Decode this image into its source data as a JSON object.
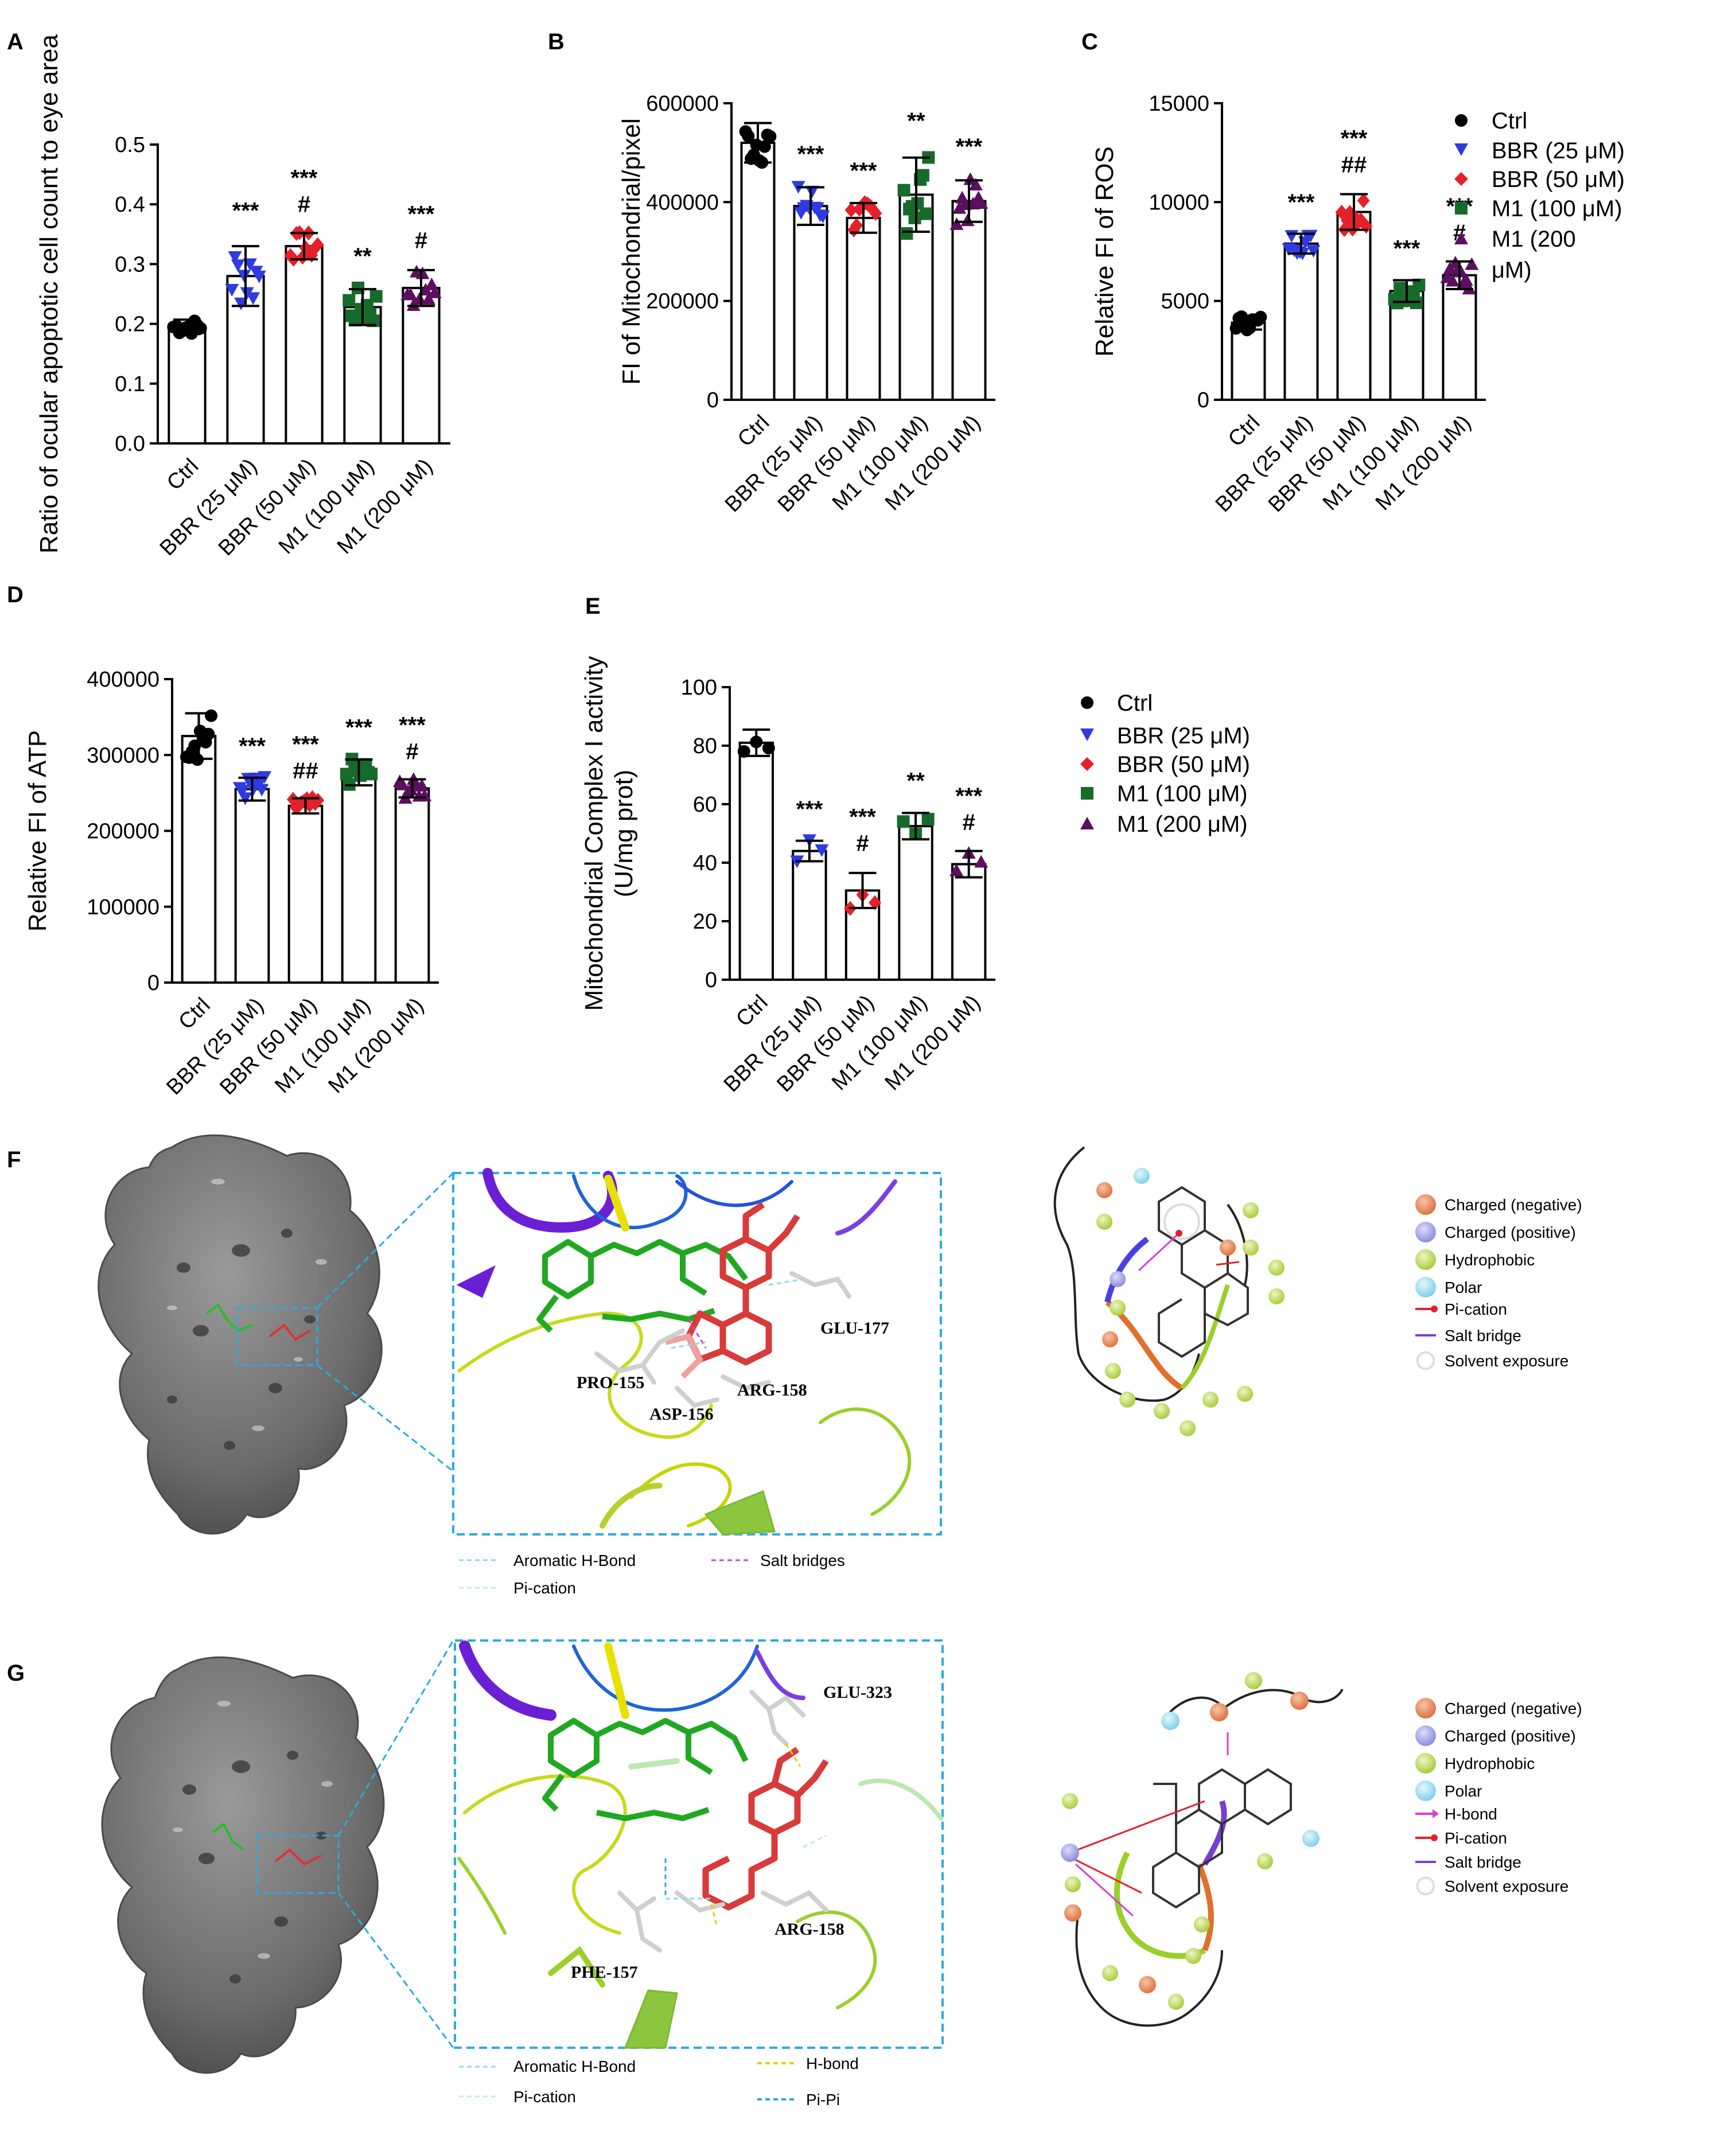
{
  "colors": {
    "Ctrl": "#000000",
    "BBR (25 μM)": "#2E3BE0",
    "BBR (50 μM)": "#E5202A",
    "M1 (100 μM)": "#166B2A",
    "M1 (200 μM)": "#5C0F5E",
    "frame": "#29ABE2"
  },
  "panel_labels": [
    "A",
    "B",
    "C",
    "D",
    "E",
    "F",
    "G"
  ],
  "legend_top": {
    "items": [
      "Ctrl",
      "BBR (25 μM)",
      "BBR (50 μM)",
      "M1 (100 μM)",
      "M1 (200 μM)"
    ],
    "last_line1": "M1 (200",
    "last_line2": "μM)"
  },
  "legend_mid": {
    "items": [
      "Ctrl",
      "BBR (25 μM)",
      "BBR (50 μM)",
      "M1 (100 μM)",
      "M1 (200 μM)"
    ]
  },
  "chart_data": [
    {
      "id": "A",
      "type": "bar",
      "categories": [
        "Ctrl",
        "BBR (25 μM)",
        "BBR (50 μM)",
        "M1 (100 μM)",
        "M1 (200 μM)"
      ],
      "values": [
        0.195,
        0.28,
        0.33,
        0.228,
        0.26
      ],
      "errors": [
        0.012,
        0.05,
        0.022,
        0.03,
        0.03
      ],
      "ylabel": "Ratio of ocular apoptotic cell count to eye area",
      "ylim": [
        0,
        0.5
      ],
      "yticks": [
        "0.0",
        "0.1",
        "0.2",
        "0.3",
        "0.4",
        "0.5"
      ],
      "significance": [
        [
          "",
          ""
        ],
        [
          "***",
          ""
        ],
        [
          "***",
          "#"
        ],
        [
          "**",
          ""
        ],
        [
          "***",
          "#"
        ]
      ]
    },
    {
      "id": "B",
      "type": "bar",
      "categories": [
        "Ctrl",
        "BBR (25 μM)",
        "BBR (50 μM)",
        "M1 (100 μM)",
        "M1 (200 μM)"
      ],
      "values": [
        520000,
        392000,
        368000,
        415000,
        402000
      ],
      "errors": [
        40000,
        38000,
        30000,
        75000,
        42000
      ],
      "ylabel": "FI of Mitochondrial/pixel",
      "ylim": [
        0,
        600000
      ],
      "yticks": [
        "0",
        "200000",
        "400000",
        "600000"
      ],
      "significance": [
        [
          "",
          ""
        ],
        [
          "***",
          ""
        ],
        [
          "***",
          ""
        ],
        [
          "**",
          ""
        ],
        [
          "***",
          ""
        ]
      ]
    },
    {
      "id": "C",
      "type": "bar",
      "categories": [
        "Ctrl",
        "BBR (25 μM)",
        "BBR (50 μM)",
        "M1 (100 μM)",
        "M1 (200 μM)"
      ],
      "values": [
        3900,
        7900,
        9500,
        5500,
        6300
      ],
      "errors": [
        350,
        500,
        900,
        550,
        700
      ],
      "ylabel": "Relative FI of ROS",
      "ylim": [
        0,
        15000
      ],
      "yticks": [
        "0",
        "5000",
        "10000",
        "15000"
      ],
      "significance": [
        [
          "",
          ""
        ],
        [
          "***",
          ""
        ],
        [
          "***",
          "##"
        ],
        [
          "***",
          ""
        ],
        [
          "***",
          "#"
        ]
      ]
    },
    {
      "id": "D",
      "type": "bar",
      "categories": [
        "Ctrl",
        "BBR (25 μM)",
        "BBR (50 μM)",
        "M1 (100 μM)",
        "M1 (200 μM)"
      ],
      "values": [
        325000,
        255000,
        233000,
        277000,
        256000
      ],
      "errors": [
        30000,
        15000,
        10000,
        17000,
        12000
      ],
      "ylabel": "Relative FI of ATP",
      "ylim": [
        0,
        400000
      ],
      "yticks": [
        "0",
        "100000",
        "200000",
        "300000",
        "400000"
      ],
      "significance": [
        [
          "",
          ""
        ],
        [
          "***",
          ""
        ],
        [
          "***",
          "##"
        ],
        [
          "***",
          ""
        ],
        [
          "***",
          "#"
        ]
      ]
    },
    {
      "id": "E",
      "type": "bar",
      "categories": [
        "Ctrl",
        "BBR (25 μM)",
        "BBR (50 μM)",
        "M1 (100 μM)",
        "M1 (200 μM)"
      ],
      "values": [
        81,
        44,
        30.5,
        52.5,
        39.5
      ],
      "errors": [
        4.5,
        3.5,
        6,
        4.5,
        4.5
      ],
      "ylabel": "Mitochondrial Complex I activity",
      "ylabel2": "(U/mg prot)",
      "ylim": [
        0,
        100
      ],
      "yticks": [
        "0",
        "20",
        "40",
        "60",
        "80",
        "100"
      ],
      "significance": [
        [
          "",
          ""
        ],
        [
          "***",
          ""
        ],
        [
          "***",
          "#"
        ],
        [
          "**",
          ""
        ],
        [
          "***",
          "#"
        ]
      ]
    }
  ],
  "docking_F": {
    "residues": [
      "GLU-177",
      "PRO-155",
      "ARG-158",
      "ASP-156"
    ],
    "legend": [
      "Aromatic H-Bond",
      "Pi-cation",
      "Salt bridges"
    ],
    "interaction_legend": [
      "Charged (negative)",
      "Charged (positive)",
      "Hydrophobic",
      "Polar",
      "Pi-cation",
      "Salt bridge",
      "Solvent exposure"
    ]
  },
  "docking_G": {
    "residues": [
      "GLU-323",
      "ARG-158",
      "PHE-157"
    ],
    "legend": [
      "Aromatic H-Bond",
      "Pi-cation",
      "H-bond",
      "Pi-Pi"
    ],
    "interaction_legend": [
      "Charged (negative)",
      "Charged (positive)",
      "Hydrophobic",
      "Polar",
      "H-bond",
      "Pi-cation",
      "Salt bridge",
      "Solvent exposure"
    ]
  }
}
